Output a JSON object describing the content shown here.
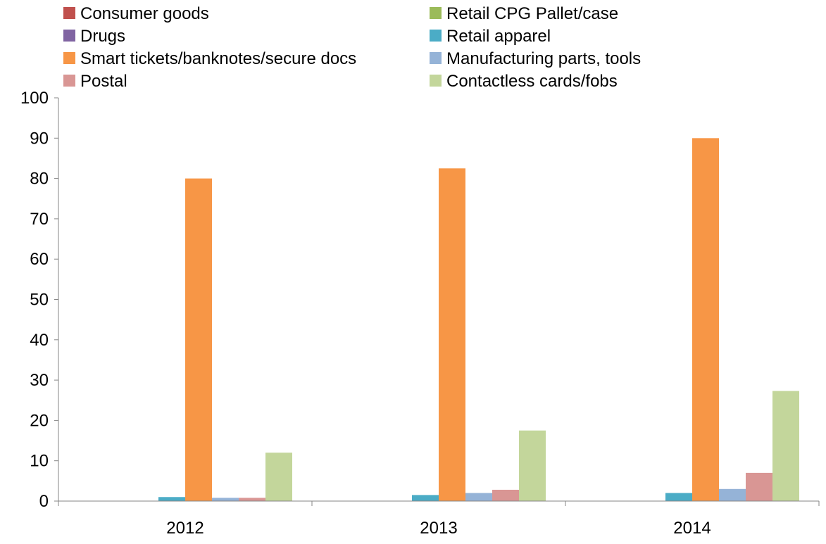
{
  "chart_data": {
    "type": "bar",
    "title": "",
    "xlabel": "",
    "ylabel": "",
    "ylim": [
      0,
      100
    ],
    "yticks": [
      0,
      10,
      20,
      30,
      40,
      50,
      60,
      70,
      80,
      90,
      100
    ],
    "grid": false,
    "legend_position": "top",
    "categories": [
      "2012",
      "2013",
      "2014"
    ],
    "series": [
      {
        "name": "Consumer goods",
        "color": "#C0504D",
        "values": [
          0,
          0,
          0
        ]
      },
      {
        "name": "Drugs",
        "color": "#8064A2",
        "values": [
          0,
          0,
          0
        ]
      },
      {
        "name": "Retail CPG Pallet/case",
        "color": "#9BBB59",
        "values": [
          0,
          0,
          0
        ]
      },
      {
        "name": "Retail apparel",
        "color": "#4BACC6",
        "values": [
          1,
          1.5,
          2
        ]
      },
      {
        "name": "Smart tickets/banknotes/secure docs",
        "color": "#F79646",
        "values": [
          80,
          82.5,
          90
        ]
      },
      {
        "name": "Manufacturing parts, tools",
        "color": "#95B3D7",
        "values": [
          0.8,
          2,
          3
        ]
      },
      {
        "name": "Postal",
        "color": "#D99694",
        "values": [
          0.8,
          2.8,
          7
        ]
      },
      {
        "name": "Contactless cards/fobs",
        "color": "#C3D69B",
        "values": [
          12,
          17.5,
          27.3
        ]
      }
    ],
    "legend": [
      {
        "label": "Consumer goods",
        "color": "#C0504D"
      },
      {
        "label": "Retail CPG Pallet/case",
        "color": "#9BBB59"
      },
      {
        "label": "Drugs",
        "color": "#8064A2"
      },
      {
        "label": "Retail apparel",
        "color": "#4BACC6"
      },
      {
        "label": "Smart tickets/banknotes/secure docs",
        "color": "#F79646"
      },
      {
        "label": "Manufacturing parts, tools",
        "color": "#95B3D7"
      },
      {
        "label": "Postal",
        "color": "#D99694"
      },
      {
        "label": "Contactless cards/fobs",
        "color": "#C3D69B"
      }
    ]
  }
}
